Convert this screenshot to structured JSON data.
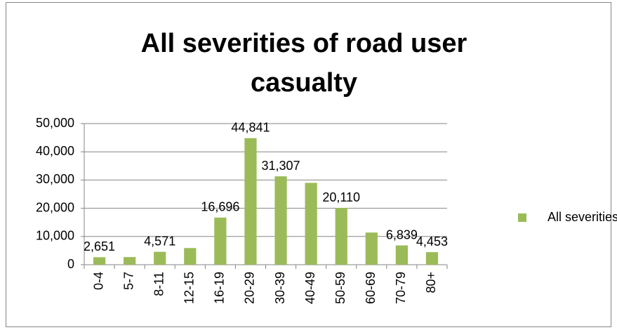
{
  "chart_data": {
    "type": "bar",
    "title": "All severities of road user casualty",
    "categories": [
      "0-4",
      "5-7",
      "8-11",
      "12-15",
      "16-19",
      "20-29",
      "30-39",
      "40-49",
      "50-59",
      "60-69",
      "70-79",
      "80+"
    ],
    "series": [
      {
        "name": "All severities",
        "color": "#9bbb59",
        "values": [
          2651,
          2700,
          4571,
          5900,
          16696,
          44841,
          31307,
          29000,
          20110,
          11400,
          6839,
          4453
        ],
        "value_labels": [
          "2,651",
          null,
          "4,571",
          null,
          "16,696",
          "44,841",
          "31,307",
          null,
          "20,110",
          null,
          "6,839",
          "4,453"
        ]
      }
    ],
    "ylim": [
      0,
      50000
    ],
    "yticks": [
      0,
      {
        "value": 10000,
        "label": "10,000"
      },
      {
        "value": 20000,
        "label": "20,000"
      },
      {
        "value": 30000,
        "label": "30,000"
      },
      {
        "value": 40000,
        "label": "40,000"
      },
      {
        "value": 50000,
        "label": "50,000"
      }
    ],
    "grid": true,
    "legend": "right"
  }
}
